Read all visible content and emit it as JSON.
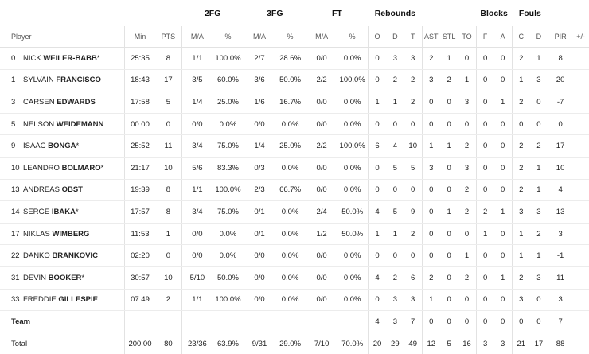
{
  "groups": {
    "fg2": "2FG",
    "fg3": "3FG",
    "ft": "FT",
    "rebounds": "Rebounds",
    "blocks": "Blocks",
    "fouls": "Fouls"
  },
  "columns": {
    "player": "Player",
    "min": "Min",
    "pts": "PTS",
    "fg2_ma": "M/A",
    "fg2_pct": "%",
    "fg3_ma": "M/A",
    "fg3_pct": "%",
    "ft_ma": "M/A",
    "ft_pct": "%",
    "o": "O",
    "d": "D",
    "t": "T",
    "ast": "AST",
    "stl": "STL",
    "to": "TO",
    "bf": "F",
    "ba": "A",
    "fc": "C",
    "fd": "D",
    "pir": "PIR",
    "pm": "+/-"
  },
  "players": [
    {
      "num": "0",
      "first": "NICK",
      "last": "WEILER-BABB",
      "star": "*",
      "min": "25:35",
      "pts": "8",
      "fg2_ma": "1/1",
      "fg2_pct": "100.0%",
      "fg3_ma": "2/7",
      "fg3_pct": "28.6%",
      "ft_ma": "0/0",
      "ft_pct": "0.0%",
      "o": "0",
      "d": "3",
      "t": "3",
      "ast": "2",
      "stl": "1",
      "to": "0",
      "bf": "0",
      "ba": "0",
      "fc": "2",
      "fd": "1",
      "pir": "8",
      "pm": ""
    },
    {
      "num": "1",
      "first": "SYLVAIN",
      "last": "FRANCISCO",
      "star": "",
      "min": "18:43",
      "pts": "17",
      "fg2_ma": "3/5",
      "fg2_pct": "60.0%",
      "fg3_ma": "3/6",
      "fg3_pct": "50.0%",
      "ft_ma": "2/2",
      "ft_pct": "100.0%",
      "o": "0",
      "d": "2",
      "t": "2",
      "ast": "3",
      "stl": "2",
      "to": "1",
      "bf": "0",
      "ba": "0",
      "fc": "1",
      "fd": "3",
      "pir": "20",
      "pm": ""
    },
    {
      "num": "3",
      "first": "CARSEN",
      "last": "EDWARDS",
      "star": "",
      "min": "17:58",
      "pts": "5",
      "fg2_ma": "1/4",
      "fg2_pct": "25.0%",
      "fg3_ma": "1/6",
      "fg3_pct": "16.7%",
      "ft_ma": "0/0",
      "ft_pct": "0.0%",
      "o": "1",
      "d": "1",
      "t": "2",
      "ast": "0",
      "stl": "0",
      "to": "3",
      "bf": "0",
      "ba": "1",
      "fc": "2",
      "fd": "0",
      "pir": "-7",
      "pm": ""
    },
    {
      "num": "5",
      "first": "NELSON",
      "last": "WEIDEMANN",
      "star": "",
      "min": "00:00",
      "pts": "0",
      "fg2_ma": "0/0",
      "fg2_pct": "0.0%",
      "fg3_ma": "0/0",
      "fg3_pct": "0.0%",
      "ft_ma": "0/0",
      "ft_pct": "0.0%",
      "o": "0",
      "d": "0",
      "t": "0",
      "ast": "0",
      "stl": "0",
      "to": "0",
      "bf": "0",
      "ba": "0",
      "fc": "0",
      "fd": "0",
      "pir": "0",
      "pm": ""
    },
    {
      "num": "9",
      "first": "ISAAC",
      "last": "BONGA",
      "star": "*",
      "min": "25:52",
      "pts": "11",
      "fg2_ma": "3/4",
      "fg2_pct": "75.0%",
      "fg3_ma": "1/4",
      "fg3_pct": "25.0%",
      "ft_ma": "2/2",
      "ft_pct": "100.0%",
      "o": "6",
      "d": "4",
      "t": "10",
      "ast": "1",
      "stl": "1",
      "to": "2",
      "bf": "0",
      "ba": "0",
      "fc": "2",
      "fd": "2",
      "pir": "17",
      "pm": ""
    },
    {
      "num": "10",
      "first": "LEANDRO",
      "last": "BOLMARO",
      "star": "*",
      "min": "21:17",
      "pts": "10",
      "fg2_ma": "5/6",
      "fg2_pct": "83.3%",
      "fg3_ma": "0/3",
      "fg3_pct": "0.0%",
      "ft_ma": "0/0",
      "ft_pct": "0.0%",
      "o": "0",
      "d": "5",
      "t": "5",
      "ast": "3",
      "stl": "0",
      "to": "3",
      "bf": "0",
      "ba": "0",
      "fc": "2",
      "fd": "1",
      "pir": "10",
      "pm": ""
    },
    {
      "num": "13",
      "first": "ANDREAS",
      "last": "OBST",
      "star": "",
      "min": "19:39",
      "pts": "8",
      "fg2_ma": "1/1",
      "fg2_pct": "100.0%",
      "fg3_ma": "2/3",
      "fg3_pct": "66.7%",
      "ft_ma": "0/0",
      "ft_pct": "0.0%",
      "o": "0",
      "d": "0",
      "t": "0",
      "ast": "0",
      "stl": "0",
      "to": "2",
      "bf": "0",
      "ba": "0",
      "fc": "2",
      "fd": "1",
      "pir": "4",
      "pm": ""
    },
    {
      "num": "14",
      "first": "SERGE",
      "last": "IBAKA",
      "star": "*",
      "min": "17:57",
      "pts": "8",
      "fg2_ma": "3/4",
      "fg2_pct": "75.0%",
      "fg3_ma": "0/1",
      "fg3_pct": "0.0%",
      "ft_ma": "2/4",
      "ft_pct": "50.0%",
      "o": "4",
      "d": "5",
      "t": "9",
      "ast": "0",
      "stl": "1",
      "to": "2",
      "bf": "2",
      "ba": "1",
      "fc": "3",
      "fd": "3",
      "pir": "13",
      "pm": ""
    },
    {
      "num": "17",
      "first": "NIKLAS",
      "last": "WIMBERG",
      "star": "",
      "min": "11:53",
      "pts": "1",
      "fg2_ma": "0/0",
      "fg2_pct": "0.0%",
      "fg3_ma": "0/1",
      "fg3_pct": "0.0%",
      "ft_ma": "1/2",
      "ft_pct": "50.0%",
      "o": "1",
      "d": "1",
      "t": "2",
      "ast": "0",
      "stl": "0",
      "to": "0",
      "bf": "1",
      "ba": "0",
      "fc": "1",
      "fd": "2",
      "pir": "3",
      "pm": ""
    },
    {
      "num": "22",
      "first": "DANKO",
      "last": "BRANKOVIC",
      "star": "",
      "min": "02:20",
      "pts": "0",
      "fg2_ma": "0/0",
      "fg2_pct": "0.0%",
      "fg3_ma": "0/0",
      "fg3_pct": "0.0%",
      "ft_ma": "0/0",
      "ft_pct": "0.0%",
      "o": "0",
      "d": "0",
      "t": "0",
      "ast": "0",
      "stl": "0",
      "to": "1",
      "bf": "0",
      "ba": "0",
      "fc": "1",
      "fd": "1",
      "pir": "-1",
      "pm": ""
    },
    {
      "num": "31",
      "first": "DEVIN",
      "last": "BOOKER",
      "star": "*",
      "min": "30:57",
      "pts": "10",
      "fg2_ma": "5/10",
      "fg2_pct": "50.0%",
      "fg3_ma": "0/0",
      "fg3_pct": "0.0%",
      "ft_ma": "0/0",
      "ft_pct": "0.0%",
      "o": "4",
      "d": "2",
      "t": "6",
      "ast": "2",
      "stl": "0",
      "to": "2",
      "bf": "0",
      "ba": "1",
      "fc": "2",
      "fd": "3",
      "pir": "11",
      "pm": ""
    },
    {
      "num": "33",
      "first": "FREDDIE",
      "last": "GILLESPIE",
      "star": "",
      "min": "07:49",
      "pts": "2",
      "fg2_ma": "1/1",
      "fg2_pct": "100.0%",
      "fg3_ma": "0/0",
      "fg3_pct": "0.0%",
      "ft_ma": "0/0",
      "ft_pct": "0.0%",
      "o": "0",
      "d": "3",
      "t": "3",
      "ast": "1",
      "stl": "0",
      "to": "0",
      "bf": "0",
      "ba": "0",
      "fc": "3",
      "fd": "0",
      "pir": "3",
      "pm": ""
    }
  ],
  "team": {
    "label": "Team",
    "min": "",
    "pts": "",
    "fg2_ma": "",
    "fg2_pct": "",
    "fg3_ma": "",
    "fg3_pct": "",
    "ft_ma": "",
    "ft_pct": "",
    "o": "4",
    "d": "3",
    "t": "7",
    "ast": "0",
    "stl": "0",
    "to": "0",
    "bf": "0",
    "ba": "0",
    "fc": "0",
    "fd": "0",
    "pir": "7",
    "pm": ""
  },
  "total": {
    "label": "Total",
    "min": "200:00",
    "pts": "80",
    "fg2_ma": "23/36",
    "fg2_pct": "63.9%",
    "fg3_ma": "9/31",
    "fg3_pct": "29.0%",
    "ft_ma": "7/10",
    "ft_pct": "70.0%",
    "o": "20",
    "d": "29",
    "t": "49",
    "ast": "12",
    "stl": "5",
    "to": "16",
    "bf": "3",
    "ba": "3",
    "fc": "21",
    "fd": "17",
    "pir": "88",
    "pm": ""
  }
}
